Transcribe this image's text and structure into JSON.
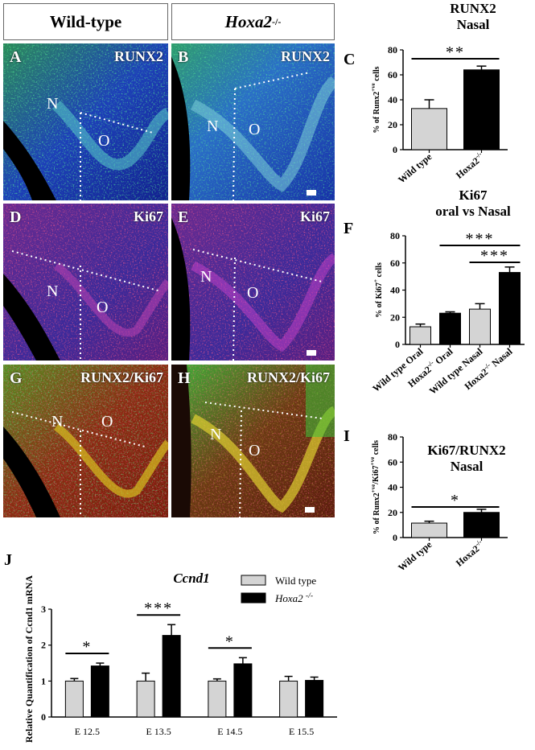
{
  "columns": {
    "left": "Wild-type",
    "right": "Hoxa2",
    "right_sup": "-/-"
  },
  "panels": {
    "A": {
      "letter": "A",
      "marker": "RUNX2",
      "n": "N",
      "o": "O"
    },
    "B": {
      "letter": "B",
      "marker": "RUNX2",
      "n": "N",
      "o": "O"
    },
    "D": {
      "letter": "D",
      "marker": "Ki67",
      "n": "N",
      "o": "O"
    },
    "E": {
      "letter": "E",
      "marker": "Ki67",
      "n": "N",
      "o": "O"
    },
    "G": {
      "letter": "G",
      "marker": "RUNX2/Ki67",
      "n": "N",
      "o": "O"
    },
    "H": {
      "letter": "H",
      "marker": "RUNX2/Ki67",
      "n": "N",
      "o": "O"
    }
  },
  "images": {
    "runx2_color": "#2fb24f",
    "ki67_color": "#e0204a",
    "dapi_color": "#1b2fb5"
  },
  "chart_data": [
    {
      "id": "C",
      "type": "bar",
      "title": "RUNX2",
      "subtitle": "Nasal",
      "ylabel": "% of Runx2+ve cells",
      "categories": [
        "Wild type",
        "Hoxa2-/-"
      ],
      "values": [
        33,
        64
      ],
      "errors": [
        7,
        3
      ],
      "colors": [
        "#d4d4d4",
        "#000000"
      ],
      "ylim": [
        0,
        80
      ],
      "yticks": [
        0,
        20,
        40,
        60,
        80
      ],
      "significance": [
        {
          "label": "**",
          "from": 0,
          "to": 1
        }
      ]
    },
    {
      "id": "F",
      "type": "bar",
      "title": "Ki67",
      "subtitle": "oral vs Nasal",
      "ylabel": "% of Ki67+ cells",
      "categories": [
        "Wild type Oral",
        "Hoxa2-/- Oral",
        "Wild type Nasal",
        "Hoxa2-/- Nasal"
      ],
      "values": [
        13,
        23,
        26,
        53
      ],
      "errors": [
        2,
        1,
        4,
        4
      ],
      "colors": [
        "#d4d4d4",
        "#000000",
        "#d4d4d4",
        "#000000"
      ],
      "ylim": [
        0,
        80
      ],
      "yticks": [
        0,
        20,
        40,
        60,
        80
      ],
      "significance": [
        {
          "label": "***",
          "from": 1,
          "to": 3
        },
        {
          "label": "***",
          "from": 2,
          "to": 3
        }
      ]
    },
    {
      "id": "I",
      "type": "bar",
      "title": "Ki67/RUNX2",
      "subtitle": "Nasal",
      "ylabel": "% of Runx2+ve/Ki67+ve cells",
      "categories": [
        "Wild type",
        "Hoxa2-/-"
      ],
      "values": [
        11.5,
        20
      ],
      "errors": [
        1.5,
        2.5
      ],
      "colors": [
        "#d4d4d4",
        "#000000"
      ],
      "ylim": [
        0,
        80
      ],
      "yticks": [
        0,
        20,
        40,
        60,
        80
      ],
      "significance": [
        {
          "label": "*",
          "from": 0,
          "to": 1
        }
      ]
    },
    {
      "id": "J",
      "type": "bar",
      "title": "Ccnd1",
      "ylabel": "Relative Quantification of Ccnd1 mRNA",
      "categories": [
        "E 12.5",
        "E 13.5",
        "E 14.5",
        "E 15.5"
      ],
      "series": [
        {
          "name": "Wild type",
          "values": [
            1.0,
            1.0,
            1.0,
            1.0
          ],
          "errors": [
            0.07,
            0.22,
            0.06,
            0.13
          ],
          "color": "#d4d4d4"
        },
        {
          "name": "Hoxa2 -/-",
          "values": [
            1.42,
            2.27,
            1.48,
            1.02
          ],
          "errors": [
            0.08,
            0.3,
            0.17,
            0.09
          ],
          "color": "#000000"
        }
      ],
      "ylim": [
        0,
        3
      ],
      "yticks": [
        0,
        1,
        2,
        3
      ],
      "legend": "top-right",
      "significance": [
        {
          "label": "*",
          "group": 0
        },
        {
          "label": "***",
          "group": 1
        },
        {
          "label": "*",
          "group": 2
        }
      ]
    }
  ]
}
